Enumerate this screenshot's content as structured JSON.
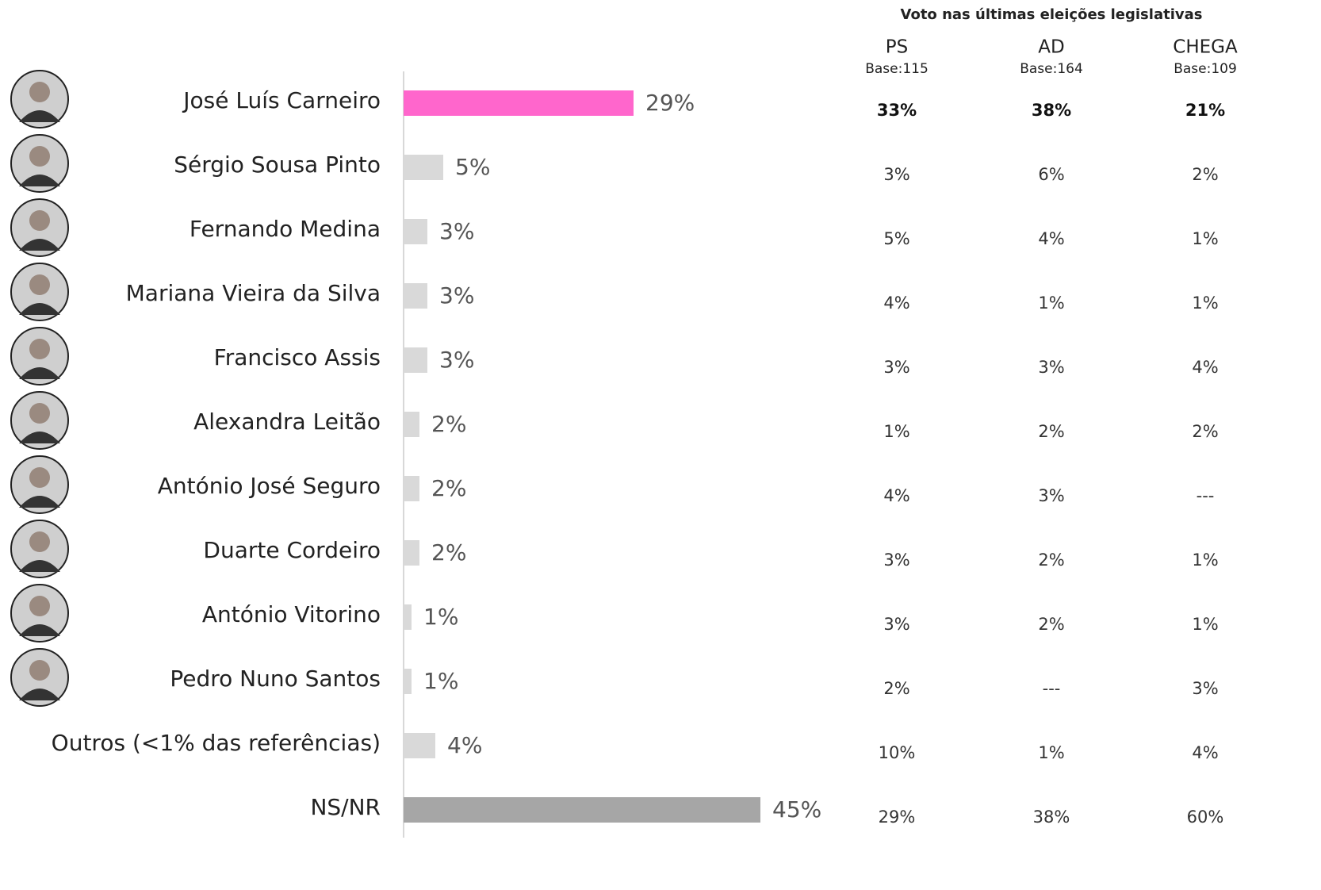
{
  "chart_data": {
    "type": "bar",
    "categories": [
      "José Luís Carneiro",
      "Sérgio Sousa Pinto",
      "Fernando Medina",
      "Mariana Vieira da Silva",
      "Francisco Assis",
      "Alexandra Leitão",
      "António José Seguro",
      "Duarte Cordeiro",
      "António Vitorino",
      "Pedro Nuno Santos",
      "Outros (<1% das referências)",
      "NS/NR"
    ],
    "values": [
      29,
      5,
      3,
      3,
      3,
      2,
      2,
      2,
      1,
      1,
      4,
      45
    ],
    "value_labels": [
      "29%",
      "5%",
      "3%",
      "3%",
      "3%",
      "2%",
      "2%",
      "2%",
      "1%",
      "1%",
      "4%",
      "45%"
    ],
    "colors": [
      "#ff66cc",
      "#d9d9d9",
      "#d9d9d9",
      "#d9d9d9",
      "#d9d9d9",
      "#d9d9d9",
      "#d9d9d9",
      "#d9d9d9",
      "#d9d9d9",
      "#d9d9d9",
      "#d9d9d9",
      "#a6a6a6"
    ]
  },
  "table": {
    "title": "Voto nas últimas eleições legislativas",
    "columns": [
      {
        "name": "PS",
        "base": "Base:115"
      },
      {
        "name": "AD",
        "base": "Base:164"
      },
      {
        "name": "CHEGA",
        "base": "Base:109"
      }
    ],
    "rows": [
      [
        "33%",
        "38%",
        "21%"
      ],
      [
        "3%",
        "6%",
        "2%"
      ],
      [
        "5%",
        "4%",
        "1%"
      ],
      [
        "4%",
        "1%",
        "1%"
      ],
      [
        "3%",
        "3%",
        "4%"
      ],
      [
        "1%",
        "2%",
        "2%"
      ],
      [
        "4%",
        "3%",
        "---"
      ],
      [
        "3%",
        "2%",
        "1%"
      ],
      [
        "3%",
        "2%",
        "1%"
      ],
      [
        "2%",
        "---",
        "3%"
      ],
      [
        "10%",
        "1%",
        "4%"
      ],
      [
        "29%",
        "38%",
        "60%"
      ]
    ]
  }
}
